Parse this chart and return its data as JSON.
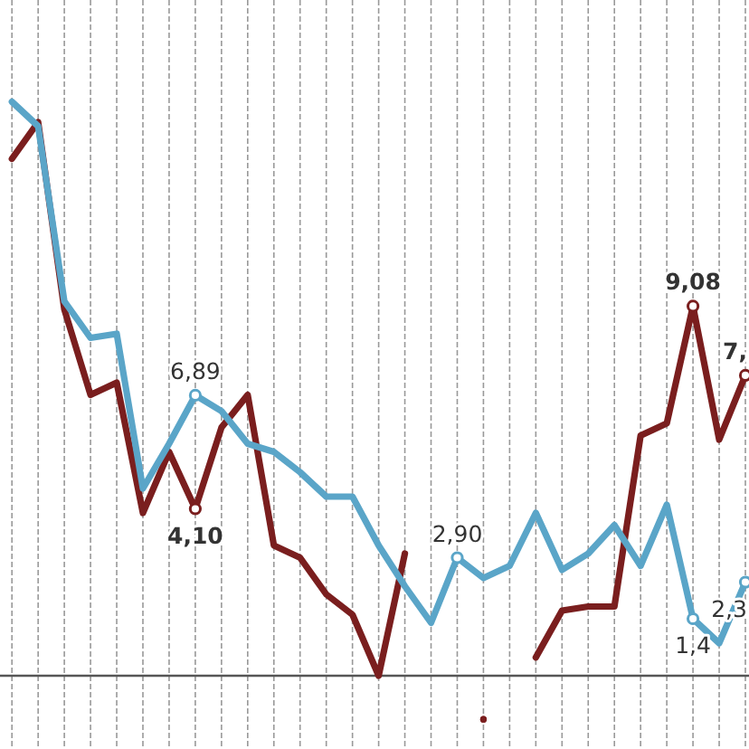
{
  "chart_data": {
    "type": "line",
    "categories": [
      null,
      null,
      null,
      null,
      null,
      null,
      null,
      null,
      null,
      null,
      null,
      null,
      null,
      null,
      null,
      null,
      null,
      null,
      null,
      null,
      null,
      null,
      null,
      null,
      null,
      null,
      null,
      null,
      null
    ],
    "ylim": [
      -1.8,
      16.6
    ],
    "grid": "x",
    "line_style": "solid",
    "ref_lines": [
      {
        "axis": "y",
        "value": 0,
        "color": "#555555"
      }
    ],
    "series": [
      {
        "color": "#7a1e1e",
        "values": [
          12.7,
          13.6,
          9.0,
          6.9,
          7.2,
          4.0,
          5.5,
          4.1,
          6.1,
          6.9,
          3.2,
          2.9,
          2.0,
          1.5,
          0.0,
          3.0,
          null,
          null,
          -1.07,
          null,
          0.45,
          1.6,
          1.7,
          1.7,
          5.9,
          6.2,
          9.08,
          5.8,
          7.38
        ],
        "value_labels": [
          null,
          null,
          null,
          null,
          null,
          null,
          null,
          "4,10",
          null,
          null,
          null,
          null,
          null,
          null,
          null,
          null,
          null,
          null,
          null,
          null,
          null,
          null,
          null,
          null,
          null,
          null,
          "9,08",
          null,
          "7,"
        ]
      },
      {
        "color": "#5aa5c8",
        "values": [
          14.1,
          13.5,
          9.2,
          8.3,
          8.4,
          4.6,
          5.7,
          6.89,
          6.5,
          5.7,
          5.5,
          5.0,
          4.4,
          4.4,
          3.2,
          2.2,
          1.3,
          2.9,
          2.4,
          2.7,
          4.0,
          2.6,
          3.0,
          3.7,
          2.7,
          4.2,
          1.4,
          0.8,
          2.3
        ],
        "value_labels": [
          null,
          null,
          null,
          null,
          null,
          null,
          null,
          "6,89",
          null,
          null,
          null,
          null,
          null,
          null,
          null,
          null,
          null,
          "2,90",
          null,
          null,
          null,
          null,
          null,
          null,
          null,
          null,
          "1,4",
          null,
          "2,3"
        ]
      }
    ]
  }
}
